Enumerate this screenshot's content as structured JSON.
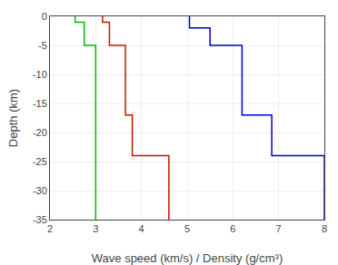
{
  "chart_data": {
    "type": "line",
    "xlabel": "Wave speed (km/s) / Density (g/cm³)",
    "ylabel": "Depth (km)",
    "xlim": [
      2,
      8
    ],
    "ylim": [
      -35,
      0
    ],
    "xticks": [
      2,
      3,
      4,
      5,
      6,
      7,
      8
    ],
    "yticks": [
      0,
      -5,
      -10,
      -15,
      -20,
      -25,
      -30,
      -35
    ],
    "grid": true,
    "series": [
      {
        "color": "#00bb00",
        "x": [
          2.55,
          2.55,
          2.75,
          2.75,
          3.0,
          3.0,
          3.0,
          3.0,
          3.0
        ],
        "values": [
          0,
          -1,
          -1,
          -5,
          -5,
          -17,
          -17,
          -24,
          -35
        ]
      },
      {
        "color": "#cc1100",
        "x": [
          3.15,
          3.15,
          3.3,
          3.3,
          3.65,
          3.65,
          3.8,
          3.8,
          4.6,
          4.6
        ],
        "values": [
          0,
          -1,
          -1,
          -5,
          -5,
          -17,
          -17,
          -24,
          -24,
          -35
        ]
      },
      {
        "color": "#0000cc",
        "x": [
          5.05,
          5.05,
          5.5,
          5.5,
          6.2,
          6.2,
          6.85,
          6.85,
          8.0,
          8.0
        ],
        "values": [
          0,
          -2,
          -2,
          -5,
          -5,
          -17,
          -17,
          -24,
          -24,
          -35
        ]
      }
    ]
  }
}
